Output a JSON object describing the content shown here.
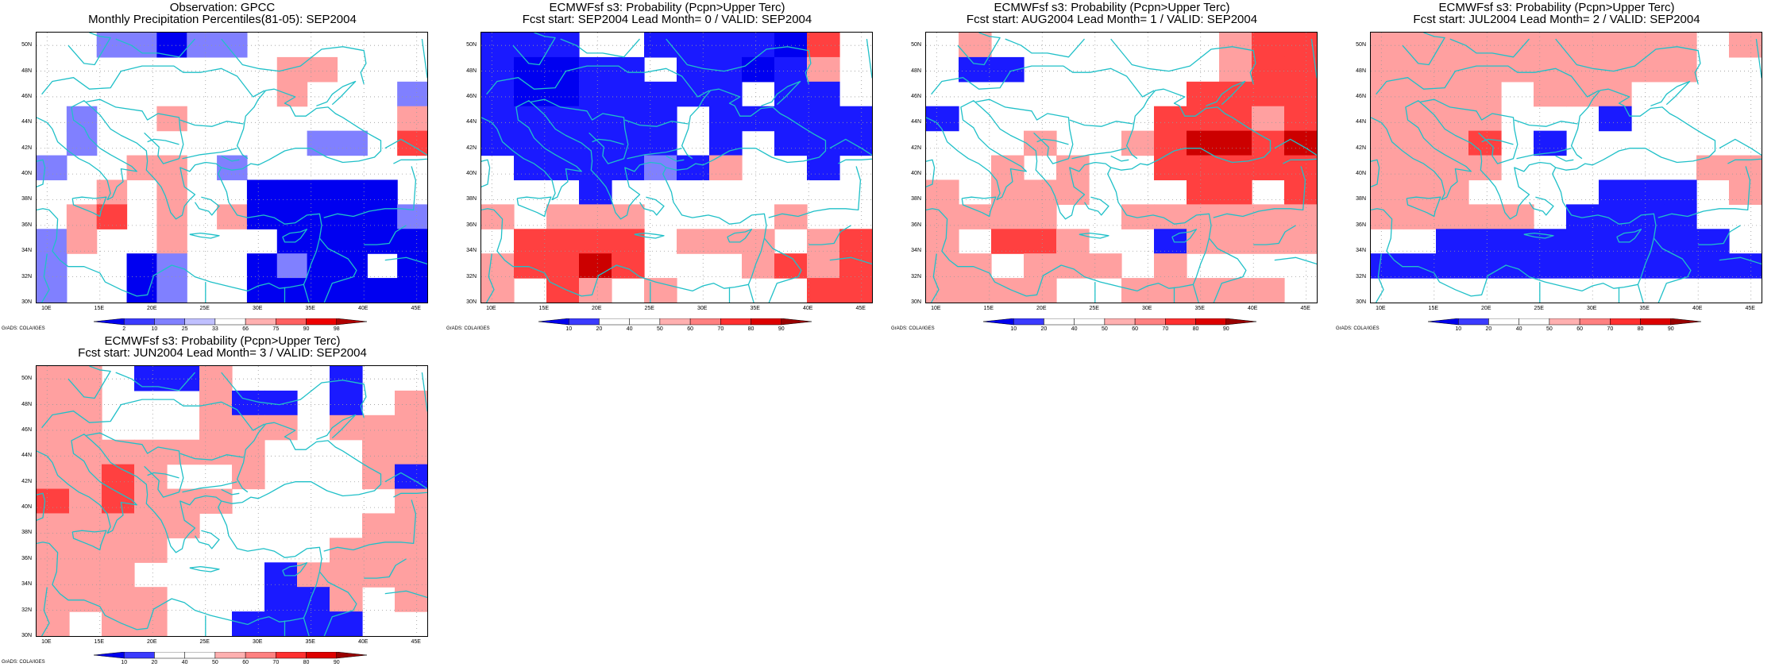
{
  "panels": [
    {
      "title1": "Observation: GPCC",
      "title2": "Monthly Precipitation Percentiles(81-05): SEP2004",
      "scale": "obs",
      "grid": [
        "WWLLDLLWWWWWW",
        "WWWWWWWWRRWWW",
        "WWWWWWWWRWWWL",
        "WLWWRWWWWWWWR",
        "WLWWWWWWWLLWS",
        "LWWRRWLWWWWWW",
        "WWRWRWWDDDDDW",
        "WRSWRWRDDDDDL",
        "LRWWRWWWDDDDD",
        "LWWDLWWDLDDWD",
        "LWWDLWWDDDDDD"
      ],
      "credit": "GrADS: COLA/IGES"
    },
    {
      "title1": "ECMWFsf s3: Probability (Pcpn>Upper Terc)",
      "title2": "Fcst start: SEP2004  Lead Month= 0 / VALID: SEP2004",
      "scale": "prob",
      "grid": [
        "BBBWWBBBBDSW",
        "BDDBBWBBDBRW",
        "BDDBBBBBWBBW",
        "BBBBBBWBBBBB",
        "BBBBBBWBWBBB",
        "WBBBBLBRWWBW",
        "WWWBWWWWWWWW",
        "RWRRRWWWWRWW",
        "WSSSSWRRRWRS",
        "RSSKSWWWRSRS",
        "RWSRWRWWWWSS"
      ],
      "credit": "GrADS: COLA/IGES"
    },
    {
      "title1": "ECMWFsf s3: Probability (Pcpn>Upper Terc)",
      "title2": "Fcst start: AUG2004  Lead Month= 1 / VALID: SEP2004",
      "scale": "prob",
      "grid": [
        "WRWWWWWWWRSS",
        "WBBWWWWWWRSS",
        "WWWWWWWWSSSS",
        "BWWWWWWSSSRS",
        "WWWRWWRSKKSK",
        "WWRWRWWSSSSS",
        "RWRRRWWWSSWS",
        "RRRRWWRRRRRR",
        "RWSSRWWBRRRR",
        "RRWRRRWRWWWW",
        "RRRRWWRRRRRW"
      ],
      "credit": "GrADS: COLA/IGES"
    },
    {
      "title1": "ECMWFsf s3: Probability (Pcpn>Upper Terc)",
      "title2": "Fcst start: JUL2004  Lead Month= 2 / VALID: SEP2004",
      "scale": "prob",
      "grid": [
        "RRRRRRRRRRWR",
        "RRRRRRRRRRWW",
        "RRRRWRRRWWWW",
        "RRRRWWWBWWWW",
        "RRRSWBWWWWWW",
        "RRRRWWWWWWRR",
        "RRRWWWWBBBWR",
        "RRRRRWBBBBWW",
        "WWBBBBBBBBBW",
        "BBBBBBBBBBBB",
        "WWWWWWWWWWWW"
      ],
      "credit": "GrADS: COLA/IGES"
    },
    {
      "title1": "ECMWFsf s3: Probability (Pcpn>Upper Terc)",
      "title2": "Fcst start: JUN2004  Lead Month= 3 / VALID: SEP2004",
      "scale": "prob",
      "grid": [
        "RRWBBRWWWBWW",
        "RRWWWRBBWBWR",
        "RRWWWRRRWRRR",
        "RRRRRRRWWWRR",
        "RRSRWWRWWWRB",
        "SRSRRRWWWWWR",
        "RRRRRWWWWWRR",
        "RRRRWWWWWRRR",
        "RRRWWWWBRRRR",
        "RRRRWWWBBRWR",
        "RWRRWWBBBBWW"
      ],
      "credit": "GrADS: COLA/IGES"
    }
  ],
  "lat_labels": [
    "50N",
    "48N",
    "46N",
    "44N",
    "42N",
    "40N",
    "38N",
    "36N",
    "34N",
    "32N",
    "30N"
  ],
  "lon_labels": [
    "10E",
    "15E",
    "20E",
    "25E",
    "30E",
    "35E",
    "40E",
    "45E"
  ],
  "scales": {
    "obs": {
      "ticks": [
        "2",
        "10",
        "25",
        "33",
        "66",
        "75",
        "90",
        "98"
      ],
      "colors": [
        "#0000ee",
        "#3b3bff",
        "#8080ff",
        "#c0c0ff",
        "#ffffff",
        "#ffb0b0",
        "#ff6060",
        "#ee0000",
        "#b00000"
      ]
    },
    "prob": {
      "ticks": [
        "10",
        "20",
        "40",
        "50",
        "60",
        "70",
        "80",
        "90"
      ],
      "colors": [
        "#0000ee",
        "#3b3bff",
        "#ffffff",
        "#ffffff",
        "#ffb0b0",
        "#ff8080",
        "#ff3030",
        "#dd0000",
        "#990000"
      ]
    }
  },
  "cell_colors": {
    "D": "#0000f0",
    "B": "#1a1aff",
    "L": "#8080ff",
    "W": "#ffffff",
    "R": "#ffa0a0",
    "S": "#ff4040",
    "K": "#cc0000"
  },
  "coast_color": "#20c0c8"
}
